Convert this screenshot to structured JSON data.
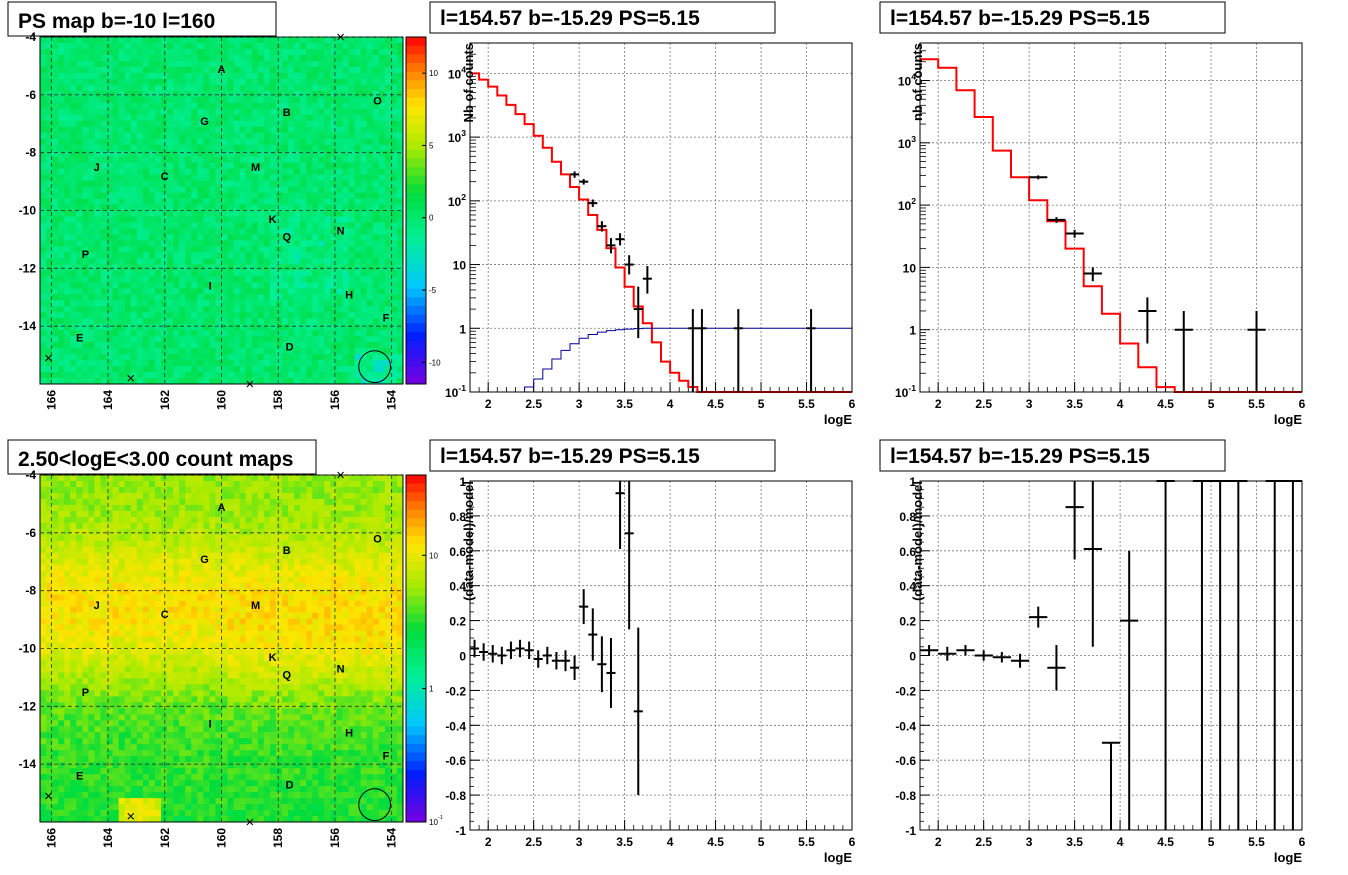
{
  "chart_data": [
    {
      "type": "heatmap",
      "title": "PS map b=-10 l=160",
      "x_ticks": [
        "166",
        "164",
        "162",
        "160",
        "158",
        "156",
        "154"
      ],
      "y_ticks": [
        "-4",
        "-6",
        "-8",
        "-10",
        "-12",
        "-14"
      ],
      "xlim": [
        166.4,
        153.6
      ],
      "ylim": [
        -16,
        -4
      ],
      "colorbar": {
        "scale": "linear",
        "min": -11.5,
        "max": 12.5,
        "ticks": [
          "10",
          "5",
          "0",
          "-5",
          "-10"
        ],
        "tick_values": [
          10,
          5,
          0,
          -5,
          -10
        ]
      },
      "background_value": 0,
      "sources": [
        {
          "name": "A",
          "l": 160.0,
          "b": -5.1
        },
        {
          "name": "B",
          "l": 157.7,
          "b": -6.6
        },
        {
          "name": "O",
          "l": 154.5,
          "b": -6.2
        },
        {
          "name": "G",
          "l": 160.6,
          "b": -6.9
        },
        {
          "name": "J",
          "l": 164.4,
          "b": -8.5
        },
        {
          "name": "C",
          "l": 162.0,
          "b": -8.8
        },
        {
          "name": "M",
          "l": 158.8,
          "b": -8.5
        },
        {
          "name": "K",
          "l": 158.2,
          "b": -10.3
        },
        {
          "name": "Q",
          "l": 157.7,
          "b": -10.9
        },
        {
          "name": "N",
          "l": 155.8,
          "b": -10.7
        },
        {
          "name": "P",
          "l": 164.8,
          "b": -11.5
        },
        {
          "name": "I",
          "l": 160.4,
          "b": -12.6
        },
        {
          "name": "H",
          "l": 155.5,
          "b": -12.9
        },
        {
          "name": "F",
          "l": 154.2,
          "b": -13.7
        },
        {
          "name": "E",
          "l": 165.0,
          "b": -14.4
        },
        {
          "name": "D",
          "l": 157.6,
          "b": -14.7
        }
      ],
      "crosses": [
        {
          "l": 155.8,
          "b": -4.0
        },
        {
          "l": 166.1,
          "b": -15.1
        },
        {
          "l": 163.2,
          "b": -15.8
        },
        {
          "l": 159.0,
          "b": -16.0
        }
      ],
      "circle": {
        "l": 154.6,
        "b": -15.4,
        "r": 0.4
      }
    },
    {
      "type": "line",
      "title": "l=154.57 b=-15.29 PS=5.15",
      "xlabel": "logE",
      "ylabel": "Nb of counts",
      "xlim": [
        1.8,
        6
      ],
      "ylim": [
        0.1,
        30000
      ],
      "yscale": "log",
      "grid": true,
      "x_ticks": [
        "2",
        "2.5",
        "3",
        "3.5",
        "4",
        "4.5",
        "5",
        "5.5",
        "6"
      ],
      "y_ticks": [
        "10^-1",
        "1",
        "10",
        "10^2",
        "10^3",
        "10^4"
      ],
      "series": [
        {
          "style": "step",
          "color": "#ff0000",
          "edges": [
            1.8,
            1.9,
            2.0,
            2.1,
            2.2,
            2.3,
            2.4,
            2.5,
            2.6,
            2.7,
            2.8,
            2.9,
            3.0,
            3.1,
            3.2,
            3.3,
            3.4,
            3.5,
            3.6,
            3.7,
            3.8,
            3.9,
            4.0,
            4.1,
            4.2,
            4.3,
            4.4,
            4.5,
            6.0
          ],
          "values": [
            10000,
            8000,
            6200,
            4500,
            3200,
            2300,
            1600,
            1050,
            680,
            410,
            260,
            165,
            105,
            60,
            35,
            18,
            9,
            4.5,
            2.2,
            1.2,
            0.6,
            0.3,
            0.2,
            0.15,
            0.12,
            0.1,
            0.1,
            0.1
          ]
        },
        {
          "style": "step",
          "color": "#00009a",
          "edges": [
            1.8,
            2.4,
            2.5,
            2.6,
            2.7,
            2.8,
            2.9,
            3.0,
            3.1,
            3.2,
            3.3,
            3.4,
            3.5,
            3.6,
            3.7,
            6.0
          ],
          "values": [
            0.1,
            0.12,
            0.16,
            0.23,
            0.33,
            0.45,
            0.57,
            0.7,
            0.8,
            0.87,
            0.92,
            0.95,
            0.97,
            0.99,
            1.0
          ]
        },
        {
          "style": "points",
          "color": "#000000",
          "x": [
            2.95,
            3.05,
            3.15,
            3.25,
            3.35,
            3.45,
            3.55,
            3.65,
            3.75,
            4.25,
            4.35,
            4.75,
            5.55
          ],
          "y": [
            260,
            200,
            92,
            40,
            20,
            25,
            10,
            2,
            6,
            1,
            1,
            1,
            1
          ],
          "ylo": [
            230,
            180,
            80,
            33,
            15,
            20,
            7,
            0.7,
            3.5,
            0.1,
            0.1,
            0.1,
            0.1
          ],
          "yhi": [
            290,
            220,
            105,
            48,
            26,
            31,
            14,
            4.5,
            9.5,
            2,
            2,
            2,
            2
          ],
          "xerr": 0.05
        }
      ]
    },
    {
      "type": "line",
      "title": "l=154.57 b=-15.29 PS=5.15",
      "xlabel": "logE",
      "ylabel": "nb of counts",
      "xlim": [
        1.8,
        6
      ],
      "ylim": [
        0.1,
        40000
      ],
      "yscale": "log",
      "grid": true,
      "x_ticks": [
        "2",
        "2.5",
        "3",
        "3.5",
        "4",
        "4.5",
        "5",
        "5.5",
        "6"
      ],
      "y_ticks": [
        "10^-1",
        "1",
        "10",
        "10^2",
        "10^3",
        "10^4"
      ],
      "series": [
        {
          "style": "step",
          "color": "#ff0000",
          "edges": [
            1.8,
            2.0,
            2.2,
            2.4,
            2.6,
            2.8,
            3.0,
            3.2,
            3.4,
            3.6,
            3.8,
            4.0,
            4.2,
            4.4,
            4.6,
            6.0
          ],
          "values": [
            22000,
            16000,
            7000,
            2600,
            750,
            280,
            120,
            55,
            20,
            5,
            1.8,
            0.6,
            0.25,
            0.12,
            0.1
          ]
        },
        {
          "style": "points",
          "color": "#000000",
          "x": [
            3.1,
            3.3,
            3.5,
            3.7,
            4.3,
            4.7,
            5.5
          ],
          "y": [
            280,
            58,
            35,
            8,
            2,
            1,
            1
          ],
          "ylo": [
            260,
            52,
            30,
            6,
            0.6,
            0.1,
            0.1
          ],
          "yhi": [
            300,
            64,
            40,
            10,
            3.3,
            2,
            2
          ],
          "xerr": 0.1
        }
      ]
    },
    {
      "type": "heatmap",
      "title": "2.50<logE<3.00 count maps",
      "x_ticks": [
        "166",
        "164",
        "162",
        "160",
        "158",
        "156",
        "154"
      ],
      "y_ticks": [
        "-4",
        "-6",
        "-8",
        "-10",
        "-12",
        "-14"
      ],
      "xlim": [
        166.4,
        153.6
      ],
      "ylim": [
        -16,
        -4
      ],
      "colorbar": {
        "scale": "log",
        "min": 0.1,
        "max": 40,
        "ticks": [
          "10",
          "1",
          "10^-1"
        ],
        "tick_values": [
          10,
          1,
          0.1
        ]
      },
      "background_value": 5,
      "sources": "same as PS map",
      "crosses": "same as PS map",
      "circle": "same as PS map"
    },
    {
      "type": "scatter",
      "title": "l=154.57 b=-15.29 PS=5.15",
      "xlabel": "logE",
      "ylabel": "(data-model)/model",
      "xlim": [
        1.8,
        6
      ],
      "ylim": [
        -1,
        1
      ],
      "grid": true,
      "x_ticks": [
        "2",
        "2.5",
        "3",
        "3.5",
        "4",
        "4.5",
        "5",
        "5.5",
        "6"
      ],
      "y_ticks": [
        "-1",
        "-0.8",
        "-0.6",
        "-0.4",
        "-0.2",
        "0",
        "0.2",
        "0.4",
        "0.6",
        "0.8",
        "1"
      ],
      "series": [
        {
          "style": "points",
          "color": "#000000",
          "x": [
            1.85,
            1.95,
            2.05,
            2.15,
            2.25,
            2.35,
            2.45,
            2.55,
            2.65,
            2.75,
            2.85,
            2.95,
            3.05,
            3.15,
            3.25,
            3.35,
            3.45,
            3.55,
            3.65
          ],
          "y": [
            0.04,
            0.02,
            0.01,
            0.0,
            0.03,
            0.04,
            0.03,
            -0.02,
            0.0,
            -0.03,
            -0.03,
            -0.07,
            0.28,
            0.12,
            -0.05,
            -0.1,
            0.93,
            0.7,
            -0.32
          ],
          "err": [
            0.05,
            0.05,
            0.05,
            0.05,
            0.05,
            0.05,
            0.05,
            0.05,
            0.05,
            0.05,
            0.06,
            0.07,
            0.1,
            0.15,
            0.16,
            0.2,
            0.32,
            0.55,
            0.48
          ],
          "xerr": 0.05
        }
      ]
    },
    {
      "type": "scatter",
      "title": "l=154.57 b=-15.29 PS=5.15",
      "xlabel": "logE",
      "ylabel": "(data-model)/model",
      "xlim": [
        1.8,
        6
      ],
      "ylim": [
        -1,
        1
      ],
      "grid": true,
      "x_ticks": [
        "2",
        "2.5",
        "3",
        "3.5",
        "4",
        "4.5",
        "5",
        "5.5",
        "6"
      ],
      "y_ticks": [
        "-1",
        "-0.8",
        "-0.6",
        "-0.4",
        "-0.2",
        "0",
        "0.2",
        "0.4",
        "0.6",
        "0.8",
        "1"
      ],
      "series": [
        {
          "style": "points",
          "color": "#000000",
          "x": [
            1.9,
            2.1,
            2.3,
            2.5,
            2.7,
            2.9,
            3.1,
            3.3,
            3.5,
            3.7,
            3.9,
            4.1,
            4.5,
            4.9,
            5.1,
            5.3,
            5.7,
            5.9
          ],
          "y": [
            0.03,
            0.01,
            0.03,
            0.0,
            -0.01,
            -0.03,
            0.22,
            -0.07,
            0.85,
            0.61,
            -0.5,
            0.2,
            1.0,
            1.0,
            1.0,
            1.0,
            1.0,
            1.0
          ],
          "ylo": [
            0.0,
            -0.03,
            0.0,
            -0.03,
            -0.04,
            -0.07,
            0.16,
            -0.2,
            0.55,
            0.05,
            -1.0,
            -1.0,
            -1.0,
            -1.0,
            -1.0,
            -1.0,
            -1.0,
            -1.0
          ],
          "yhi": [
            0.06,
            0.05,
            0.06,
            0.03,
            0.02,
            0.01,
            0.28,
            0.06,
            1.0,
            1.0,
            -0.5,
            0.6,
            1.0,
            1.0,
            1.0,
            1.0,
            1.0,
            1.0
          ],
          "xerr": 0.1
        }
      ]
    }
  ]
}
